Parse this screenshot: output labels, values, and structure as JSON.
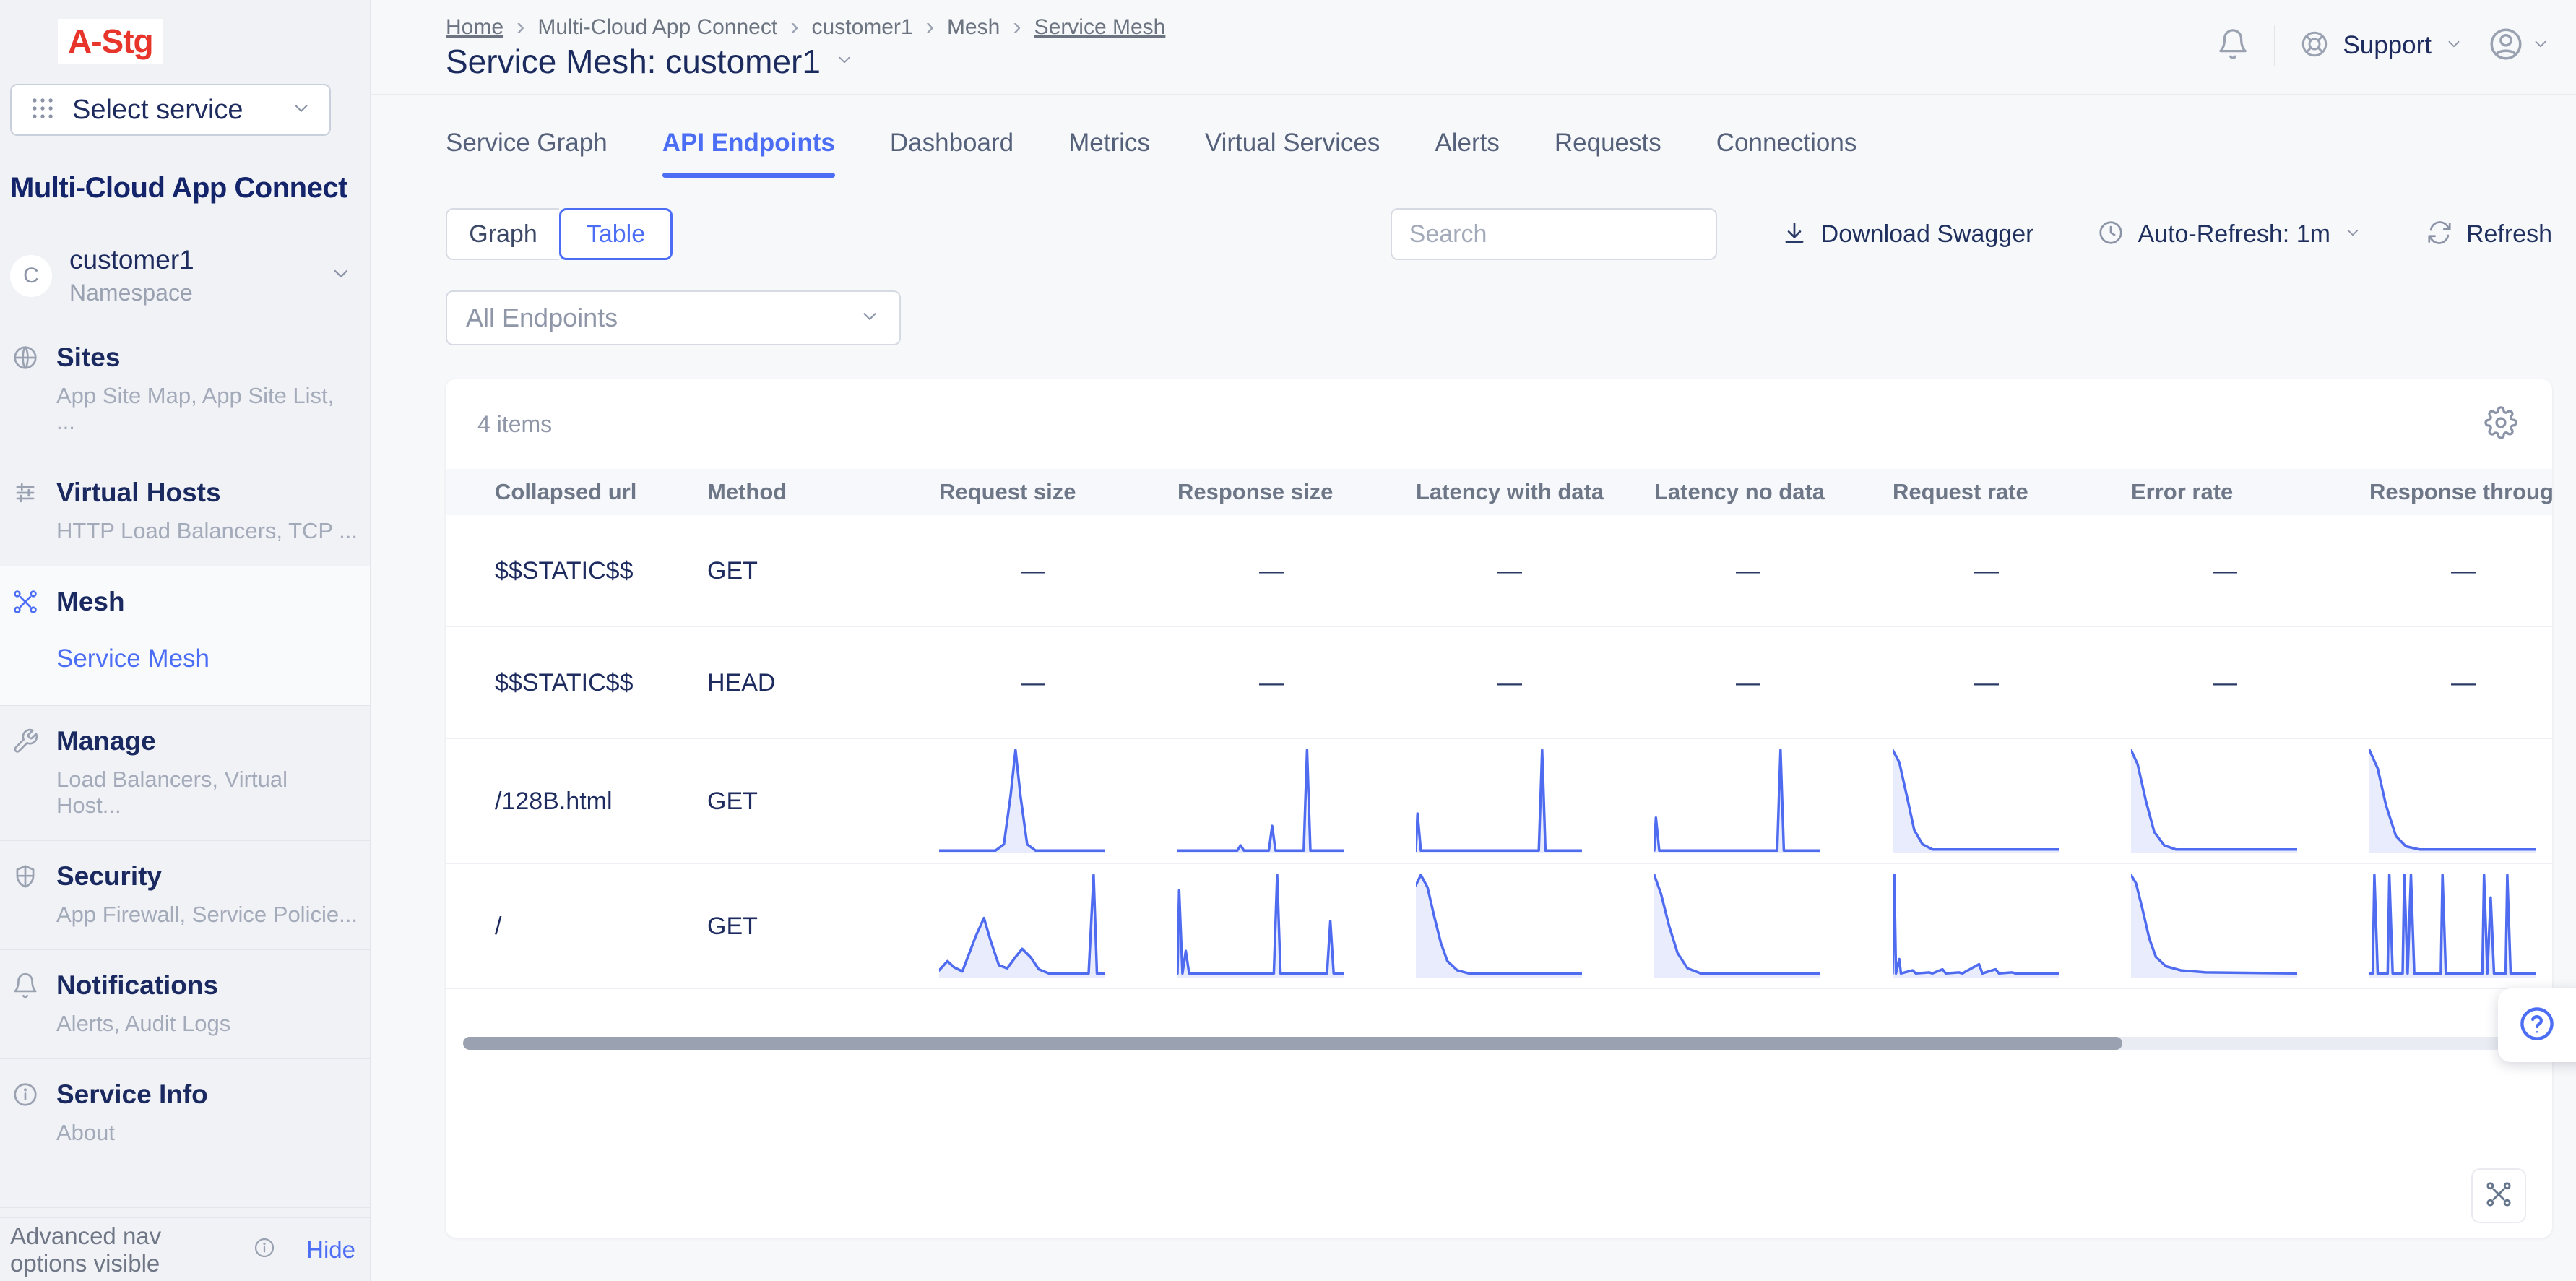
{
  "brand": {
    "logo": "A-Stg",
    "logo_color": "#e8352b"
  },
  "sidebar": {
    "select_service_label": "Select service",
    "product_title": "Multi-Cloud App Connect",
    "namespace": {
      "initial": "C",
      "name": "customer1",
      "label": "Namespace"
    },
    "items": [
      {
        "id": "sites",
        "title": "Sites",
        "subtitle": "App Site Map, App Site List, ...",
        "icon": "globe",
        "active": false
      },
      {
        "id": "virtual-hosts",
        "title": "Virtual Hosts",
        "subtitle": "HTTP Load Balancers, TCP ...",
        "icon": "sliders",
        "active": false
      },
      {
        "id": "mesh",
        "title": "Mesh",
        "subtitle": "",
        "icon": "mesh",
        "active": true,
        "links": [
          "Service Mesh"
        ]
      },
      {
        "id": "manage",
        "title": "Manage",
        "subtitle": "Load Balancers, Virtual Host...",
        "icon": "wrench",
        "active": false
      },
      {
        "id": "security",
        "title": "Security",
        "subtitle": "App Firewall, Service Policie...",
        "icon": "shield",
        "active": false
      },
      {
        "id": "notifications",
        "title": "Notifications",
        "subtitle": "Alerts, Audit Logs",
        "icon": "bell",
        "active": false
      },
      {
        "id": "service-info",
        "title": "Service Info",
        "subtitle": "About",
        "icon": "info",
        "active": false
      }
    ],
    "footer": {
      "text": "Advanced nav options visible",
      "action": "Hide"
    }
  },
  "header": {
    "breadcrumbs": [
      "Home",
      "Multi-Cloud App Connect",
      "customer1",
      "Mesh",
      "Service Mesh"
    ],
    "page_title": "Service Mesh: customer1",
    "support_label": "Support"
  },
  "tabs": [
    {
      "label": "Service Graph",
      "active": false
    },
    {
      "label": "API Endpoints",
      "active": true
    },
    {
      "label": "Dashboard",
      "active": false
    },
    {
      "label": "Metrics",
      "active": false
    },
    {
      "label": "Virtual Services",
      "active": false
    },
    {
      "label": "Alerts",
      "active": false
    },
    {
      "label": "Requests",
      "active": false
    },
    {
      "label": "Connections",
      "active": false
    }
  ],
  "toolbar": {
    "view_options": [
      "Graph",
      "Table"
    ],
    "active_view": "Table",
    "search_placeholder": "Search",
    "download_label": "Download Swagger",
    "auto_refresh_label": "Auto-Refresh: 1m",
    "refresh_label": "Refresh",
    "endpoint_filter_value": "All Endpoints"
  },
  "table": {
    "items_count": "4 items",
    "empty_cell": "—",
    "columns": [
      "Collapsed url",
      "Method",
      "Request size",
      "Response size",
      "Latency with data",
      "Latency no data",
      "Request rate",
      "Error rate",
      "Response throughput"
    ],
    "rows": [
      {
        "url": "$$STATIC$$",
        "method": "GET",
        "metrics": "empty"
      },
      {
        "url": "$$STATIC$$",
        "method": "HEAD",
        "metrics": "empty"
      },
      {
        "url": "/128B.html",
        "method": "GET",
        "metrics": "sparklines"
      },
      {
        "url": "/",
        "method": "GET",
        "metrics": "sparklines"
      }
    ]
  },
  "chart_data": {
    "type": "line",
    "note": "sparkline trend charts per table cell; points are [x_percent, value_percent_of_max]",
    "series": {
      "row_128B_html": {
        "request_size": [
          [
            0,
            2
          ],
          [
            34,
            2
          ],
          [
            39,
            8
          ],
          [
            43,
            55
          ],
          [
            46,
            100
          ],
          [
            49,
            55
          ],
          [
            53,
            8
          ],
          [
            58,
            2
          ],
          [
            100,
            2
          ]
        ],
        "response_size": [
          [
            0,
            2
          ],
          [
            36,
            2
          ],
          [
            38,
            7
          ],
          [
            40,
            2
          ],
          [
            55,
            2
          ],
          [
            57,
            26
          ],
          [
            59,
            2
          ],
          [
            76,
            2
          ],
          [
            78,
            100
          ],
          [
            80,
            2
          ],
          [
            100,
            2
          ]
        ],
        "latency_with_data": [
          [
            0,
            2
          ],
          [
            1,
            38
          ],
          [
            3,
            2
          ],
          [
            74,
            2
          ],
          [
            76,
            100
          ],
          [
            78,
            2
          ],
          [
            100,
            2
          ]
        ],
        "latency_no_data": [
          [
            0,
            2
          ],
          [
            1,
            34
          ],
          [
            3,
            2
          ],
          [
            74,
            2
          ],
          [
            76,
            100
          ],
          [
            78,
            2
          ],
          [
            100,
            2
          ]
        ],
        "request_rate": [
          [
            0,
            100
          ],
          [
            4,
            88
          ],
          [
            9,
            52
          ],
          [
            13,
            22
          ],
          [
            18,
            8
          ],
          [
            24,
            3
          ],
          [
            100,
            3
          ]
        ],
        "error_rate": [
          [
            0,
            100
          ],
          [
            4,
            86
          ],
          [
            9,
            50
          ],
          [
            14,
            20
          ],
          [
            20,
            7
          ],
          [
            27,
            3
          ],
          [
            100,
            3
          ]
        ],
        "response_throughput": [
          [
            0,
            100
          ],
          [
            5,
            82
          ],
          [
            10,
            46
          ],
          [
            16,
            16
          ],
          [
            22,
            6
          ],
          [
            30,
            3
          ],
          [
            100,
            3
          ]
        ]
      },
      "row_root": {
        "request_size": [
          [
            0,
            7
          ],
          [
            5,
            16
          ],
          [
            9,
            10
          ],
          [
            14,
            6
          ],
          [
            22,
            40
          ],
          [
            27,
            58
          ],
          [
            31,
            36
          ],
          [
            36,
            12
          ],
          [
            41,
            9
          ],
          [
            46,
            20
          ],
          [
            50,
            28
          ],
          [
            55,
            20
          ],
          [
            60,
            8
          ],
          [
            66,
            4
          ],
          [
            90,
            4
          ],
          [
            93,
            100
          ],
          [
            95,
            4
          ],
          [
            100,
            4
          ]
        ],
        "response_size": [
          [
            0,
            4
          ],
          [
            1,
            85
          ],
          [
            3,
            4
          ],
          [
            5,
            26
          ],
          [
            7,
            4
          ],
          [
            58,
            4
          ],
          [
            60,
            100
          ],
          [
            62,
            4
          ],
          [
            90,
            4
          ],
          [
            92,
            55
          ],
          [
            94,
            4
          ],
          [
            100,
            4
          ]
        ],
        "latency_with_data": [
          [
            0,
            90
          ],
          [
            3,
            100
          ],
          [
            7,
            88
          ],
          [
            11,
            60
          ],
          [
            15,
            34
          ],
          [
            19,
            16
          ],
          [
            25,
            7
          ],
          [
            32,
            4
          ],
          [
            100,
            4
          ]
        ],
        "latency_no_data": [
          [
            0,
            100
          ],
          [
            4,
            82
          ],
          [
            9,
            50
          ],
          [
            14,
            24
          ],
          [
            20,
            9
          ],
          [
            28,
            4
          ],
          [
            100,
            4
          ]
        ],
        "request_rate": [
          [
            0,
            4
          ],
          [
            1,
            100
          ],
          [
            2,
            4
          ],
          [
            4,
            18
          ],
          [
            5,
            4
          ],
          [
            12,
            7
          ],
          [
            14,
            4
          ],
          [
            22,
            5
          ],
          [
            24,
            4
          ],
          [
            30,
            8
          ],
          [
            32,
            4
          ],
          [
            40,
            5
          ],
          [
            42,
            4
          ],
          [
            52,
            13
          ],
          [
            54,
            4
          ],
          [
            62,
            8
          ],
          [
            64,
            4
          ],
          [
            72,
            5
          ],
          [
            74,
            4
          ],
          [
            100,
            4
          ]
        ],
        "error_rate": [
          [
            0,
            100
          ],
          [
            3,
            92
          ],
          [
            7,
            66
          ],
          [
            11,
            38
          ],
          [
            15,
            20
          ],
          [
            21,
            11
          ],
          [
            30,
            7
          ],
          [
            45,
            5
          ],
          [
            100,
            4
          ]
        ],
        "response_throughput": [
          [
            0,
            4
          ],
          [
            2,
            4
          ],
          [
            3,
            100
          ],
          [
            5,
            4
          ],
          [
            11,
            4
          ],
          [
            12,
            100
          ],
          [
            14,
            4
          ],
          [
            20,
            4
          ],
          [
            21,
            100
          ],
          [
            23,
            4
          ],
          [
            25,
            100
          ],
          [
            27,
            4
          ],
          [
            43,
            4
          ],
          [
            44,
            100
          ],
          [
            46,
            4
          ],
          [
            68,
            4
          ],
          [
            69,
            100
          ],
          [
            71,
            4
          ],
          [
            73,
            78
          ],
          [
            75,
            4
          ],
          [
            82,
            4
          ],
          [
            83,
            100
          ],
          [
            85,
            4
          ],
          [
            100,
            4
          ]
        ]
      }
    },
    "line_color": "#4f6bf0",
    "fill_color": "rgba(79,107,240,0.13)"
  },
  "colors": {
    "accent_blue": "#4c6ef5",
    "navy_text": "#1d2b5f",
    "logo_red": "#e8352b",
    "scrollbar_thumb": "#9aa2b2"
  }
}
